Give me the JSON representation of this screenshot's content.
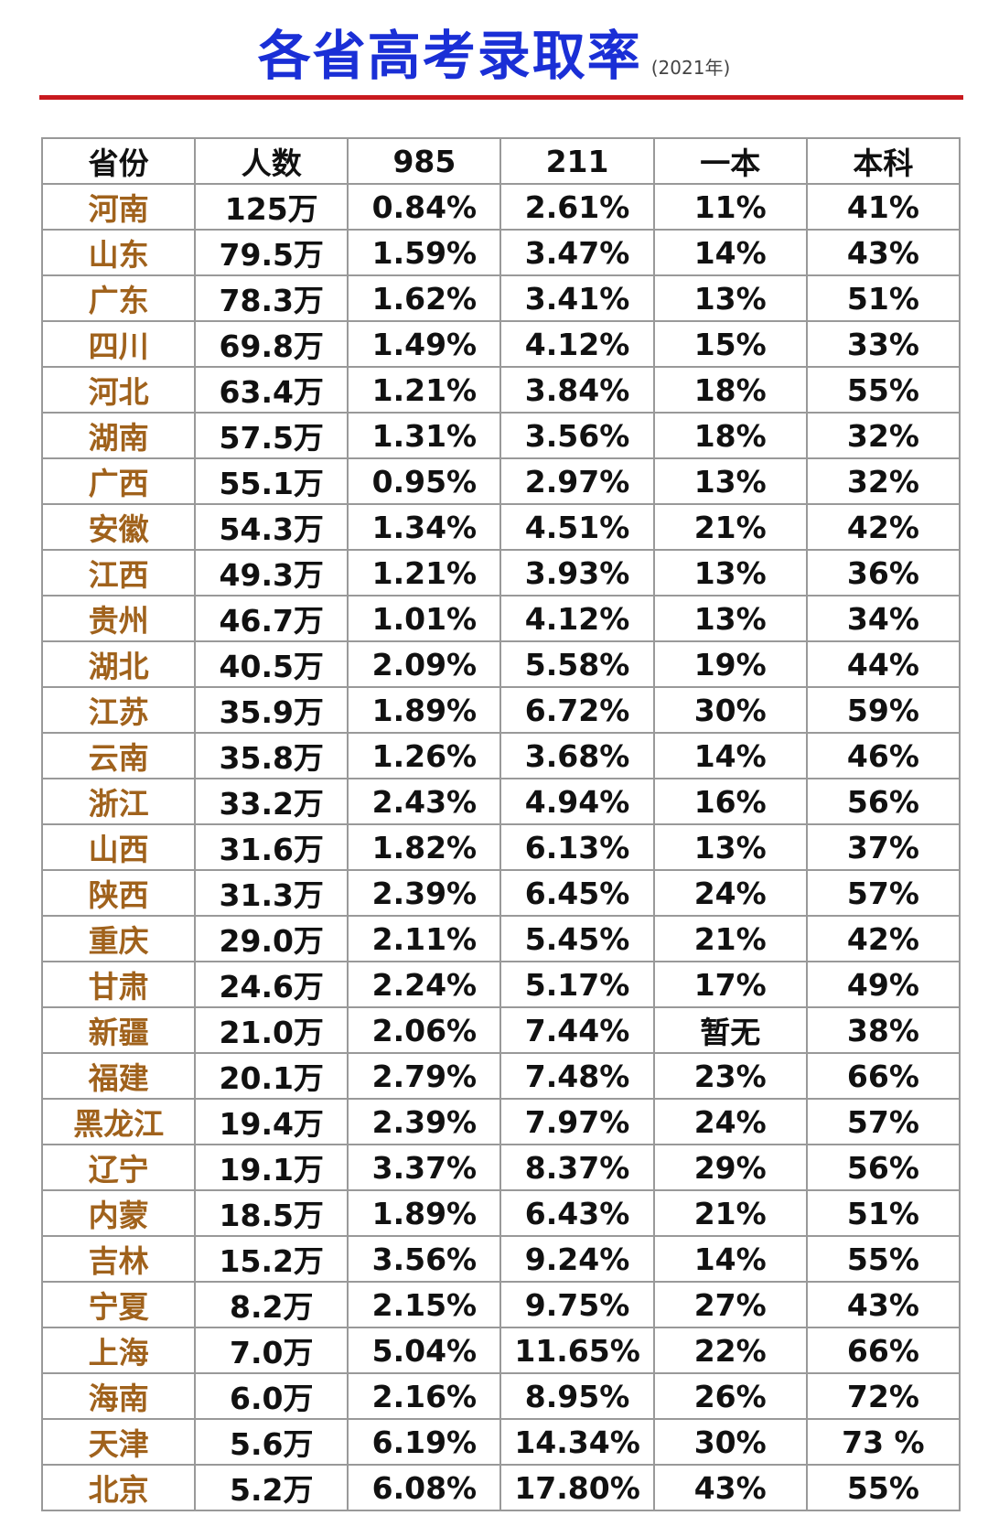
{
  "header": {
    "title": "各省高考录取率",
    "subtitle": "(2021年)"
  },
  "table": {
    "columns": [
      "省份",
      "人数",
      "985",
      "211",
      "一本",
      "本科"
    ],
    "rows": [
      [
        "河南",
        "125万",
        "0.84%",
        "2.61%",
        "11%",
        "41%"
      ],
      [
        "山东",
        "79.5万",
        "1.59%",
        "3.47%",
        "14%",
        "43%"
      ],
      [
        "广东",
        "78.3万",
        "1.62%",
        "3.41%",
        "13%",
        "51%"
      ],
      [
        "四川",
        "69.8万",
        "1.49%",
        "4.12%",
        "15%",
        "33%"
      ],
      [
        "河北",
        "63.4万",
        "1.21%",
        "3.84%",
        "18%",
        "55%"
      ],
      [
        "湖南",
        "57.5万",
        "1.31%",
        "3.56%",
        "18%",
        "32%"
      ],
      [
        "广西",
        "55.1万",
        "0.95%",
        "2.97%",
        "13%",
        "32%"
      ],
      [
        "安徽",
        "54.3万",
        "1.34%",
        "4.51%",
        "21%",
        "42%"
      ],
      [
        "江西",
        "49.3万",
        "1.21%",
        "3.93%",
        "13%",
        "36%"
      ],
      [
        "贵州",
        "46.7万",
        "1.01%",
        "4.12%",
        "13%",
        "34%"
      ],
      [
        "湖北",
        "40.5万",
        "2.09%",
        "5.58%",
        "19%",
        "44%"
      ],
      [
        "江苏",
        "35.9万",
        "1.89%",
        "6.72%",
        "30%",
        "59%"
      ],
      [
        "云南",
        "35.8万",
        "1.26%",
        "3.68%",
        "14%",
        "46%"
      ],
      [
        "浙江",
        "33.2万",
        "2.43%",
        "4.94%",
        "16%",
        "56%"
      ],
      [
        "山西",
        "31.6万",
        "1.82%",
        "6.13%",
        "13%",
        "37%"
      ],
      [
        "陕西",
        "31.3万",
        "2.39%",
        "6.45%",
        "24%",
        "57%"
      ],
      [
        "重庆",
        "29.0万",
        "2.11%",
        "5.45%",
        "21%",
        "42%"
      ],
      [
        "甘肃",
        "24.6万",
        "2.24%",
        "5.17%",
        "17%",
        "49%"
      ],
      [
        "新疆",
        "21.0万",
        "2.06%",
        "7.44%",
        "暂无",
        "38%"
      ],
      [
        "福建",
        "20.1万",
        "2.79%",
        "7.48%",
        "23%",
        "66%"
      ],
      [
        "黑龙江",
        "19.4万",
        "2.39%",
        "7.97%",
        "24%",
        "57%"
      ],
      [
        "辽宁",
        "19.1万",
        "3.37%",
        "8.37%",
        "29%",
        "56%"
      ],
      [
        "内蒙",
        "18.5万",
        "1.89%",
        "6.43%",
        "21%",
        "51%"
      ],
      [
        "吉林",
        "15.2万",
        "3.56%",
        "9.24%",
        "14%",
        "55%"
      ],
      [
        "宁夏",
        "8.2万",
        "2.15%",
        "9.75%",
        "27%",
        "43%"
      ],
      [
        "上海",
        "7.0万",
        "5.04%",
        "11.65%",
        "22%",
        "66%"
      ],
      [
        "海南",
        "6.0万",
        "2.16%",
        "8.95%",
        "26%",
        "72%"
      ],
      [
        "天津",
        "5.6万",
        "6.19%",
        "14.34%",
        "30%",
        "73 %"
      ],
      [
        "北京",
        "5.2万",
        "6.08%",
        "17.80%",
        "43%",
        "55%"
      ]
    ]
  }
}
